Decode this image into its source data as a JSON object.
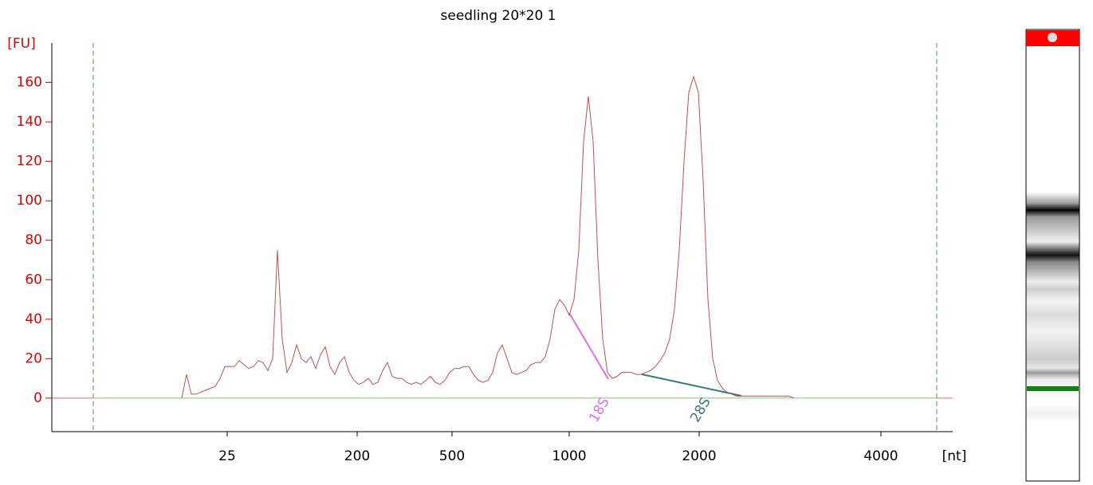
{
  "chart_data": {
    "type": "line",
    "title": "seedling 20*20 1",
    "ylabel": "[FU]",
    "xlabel": "[nt]",
    "color": "#c0504d",
    "axis_color": "#e00000",
    "ylim": [
      -17,
      180
    ],
    "yticks": [
      0,
      20,
      40,
      60,
      80,
      100,
      120,
      140,
      160
    ],
    "xticks": [
      25,
      200,
      500,
      1000,
      2000,
      4000
    ],
    "values": [
      0,
      12,
      2,
      2,
      3,
      4,
      5,
      6,
      10,
      16,
      16,
      16,
      19,
      17,
      15,
      16,
      19,
      18,
      14,
      20,
      75,
      30,
      13,
      18,
      27,
      20,
      18,
      21,
      15,
      22,
      26,
      16,
      12,
      18,
      21,
      13,
      9,
      7,
      8,
      10,
      7,
      8,
      14,
      18,
      11,
      10,
      10,
      8,
      7,
      8,
      7,
      9,
      11,
      8,
      7,
      9,
      13,
      15,
      15,
      16,
      16,
      12,
      9,
      8,
      9,
      13,
      23,
      27,
      20,
      13,
      12,
      13,
      14,
      17,
      18,
      18,
      21,
      30,
      45,
      50,
      47,
      42,
      50,
      75,
      130,
      153,
      130,
      70,
      30,
      13,
      10,
      11,
      13,
      13,
      13,
      12,
      12,
      13,
      14,
      16,
      19,
      23,
      30,
      45,
      75,
      120,
      155,
      163,
      155,
      110,
      50,
      20,
      9,
      5,
      3,
      2,
      1,
      1,
      1,
      1,
      1,
      1,
      1,
      1,
      1,
      1,
      1,
      1,
      0
    ],
    "annotations": [
      {
        "text": "18S",
        "color": "#e36ee3"
      },
      {
        "text": "28S",
        "color": "#3a7878"
      }
    ]
  }
}
